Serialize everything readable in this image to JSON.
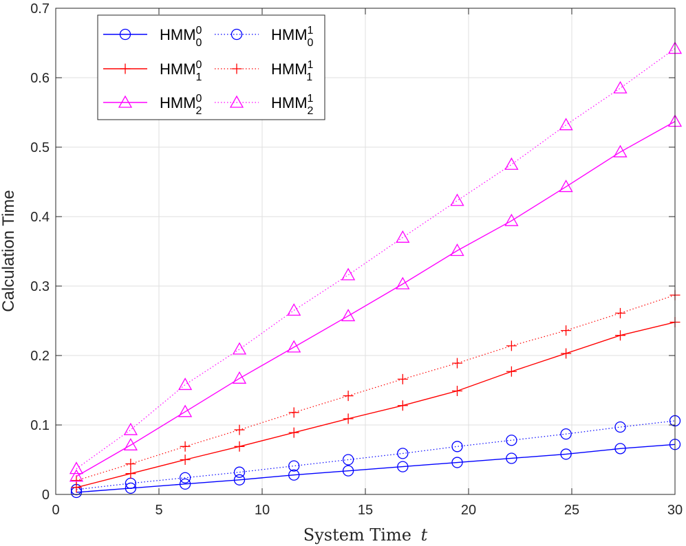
{
  "chart_data": {
    "type": "line",
    "title": "",
    "xlabel": "System Time",
    "xlabel_var": "t",
    "ylabel": "Calculation Time",
    "xlim": [
      0,
      30
    ],
    "ylim": [
      0,
      0.7
    ],
    "xticks": [
      0,
      5,
      10,
      15,
      20,
      25,
      30
    ],
    "yticks": [
      0,
      0.1,
      0.2,
      0.3,
      0.4,
      0.5,
      0.6,
      0.7
    ],
    "xtick_labels": [
      "0",
      "5",
      "10",
      "15",
      "20",
      "25",
      "30"
    ],
    "ytick_labels": [
      "0",
      "0.1",
      "0.2",
      "0.3",
      "0.4",
      "0.5",
      "0.6",
      "0.7"
    ],
    "grid": true,
    "legend_position": "top-left",
    "x": [
      1,
      3.63,
      6.27,
      8.9,
      11.54,
      14.17,
      16.81,
      19.45,
      22.08,
      24.72,
      27.35,
      30
    ],
    "series": [
      {
        "name": "HMM_0^0",
        "base": "HMM",
        "sub": "0",
        "sup": "0",
        "color": "#0000ff",
        "line": "solid",
        "marker": "circle",
        "values": [
          0.003,
          0.009,
          0.015,
          0.021,
          0.028,
          0.034,
          0.04,
          0.046,
          0.052,
          0.058,
          0.066,
          0.072
        ]
      },
      {
        "name": "HMM_0^1",
        "base": "HMM",
        "sub": "0",
        "sup": "1",
        "color": "#0000ff",
        "line": "dotted",
        "marker": "circle",
        "values": [
          0.007,
          0.016,
          0.024,
          0.032,
          0.041,
          0.05,
          0.059,
          0.069,
          0.078,
          0.087,
          0.097,
          0.106
        ]
      },
      {
        "name": "HMM_1^0",
        "base": "HMM",
        "sub": "1",
        "sup": "0",
        "color": "#ff0000",
        "line": "solid",
        "marker": "plus",
        "values": [
          0.01,
          0.03,
          0.05,
          0.069,
          0.089,
          0.109,
          0.128,
          0.149,
          0.177,
          0.203,
          0.229,
          0.248
        ]
      },
      {
        "name": "HMM_1^1",
        "base": "HMM",
        "sub": "1",
        "sup": "1",
        "color": "#ff0000",
        "line": "dotted",
        "marker": "plus",
        "values": [
          0.02,
          0.044,
          0.069,
          0.093,
          0.118,
          0.142,
          0.166,
          0.189,
          0.214,
          0.236,
          0.261,
          0.287
        ]
      },
      {
        "name": "HMM_2^0",
        "base": "HMM",
        "sub": "2",
        "sup": "0",
        "color": "#ff00ff",
        "line": "solid",
        "marker": "triangle",
        "values": [
          0.026,
          0.071,
          0.119,
          0.167,
          0.212,
          0.257,
          0.303,
          0.351,
          0.394,
          0.443,
          0.493,
          0.537
        ]
      },
      {
        "name": "HMM_2^1",
        "base": "HMM",
        "sub": "2",
        "sup": "1",
        "color": "#ff00ff",
        "line": "dotted",
        "marker": "triangle",
        "values": [
          0.037,
          0.093,
          0.158,
          0.209,
          0.265,
          0.316,
          0.37,
          0.423,
          0.475,
          0.532,
          0.585,
          0.642
        ]
      }
    ]
  }
}
